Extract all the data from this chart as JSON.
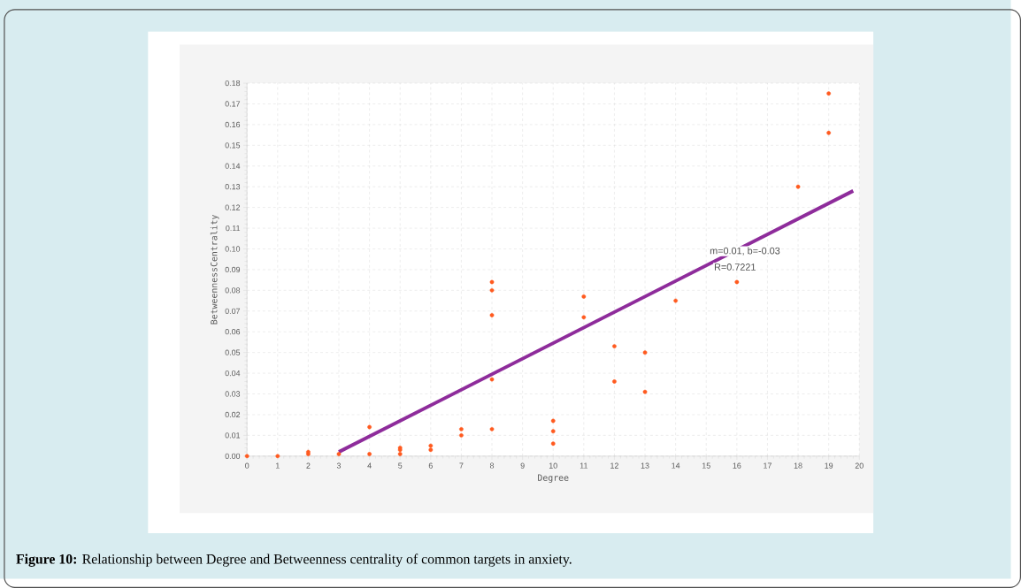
{
  "chart_data": {
    "type": "scatter",
    "xlabel": "Degree",
    "ylabel": "BetweennessCentrality",
    "xlim": [
      0,
      20
    ],
    "ylim": [
      0,
      0.18
    ],
    "xticks": [
      0,
      1,
      2,
      3,
      4,
      5,
      6,
      7,
      8,
      9,
      10,
      11,
      12,
      13,
      14,
      15,
      16,
      17,
      18,
      19,
      20
    ],
    "yticks": [
      {
        "value": 0,
        "label": "0.00"
      },
      {
        "value": 0.01,
        "label": "0.01"
      },
      {
        "value": 0.02,
        "label": "0.02"
      },
      {
        "value": 0.03,
        "label": "0.03"
      },
      {
        "value": 0.04,
        "label": "0.04"
      },
      {
        "value": 0.05,
        "label": "0.05"
      },
      {
        "value": 0.06,
        "label": "0.06"
      },
      {
        "value": 0.07,
        "label": "0.07"
      },
      {
        "value": 0.08,
        "label": "0.08"
      },
      {
        "value": 0.09,
        "label": "0.09"
      },
      {
        "value": 0.1,
        "label": "0.10"
      },
      {
        "value": 0.11,
        "label": "0.11"
      },
      {
        "value": 0.12,
        "label": "0.12"
      },
      {
        "value": 0.13,
        "label": "0.13"
      },
      {
        "value": 0.14,
        "label": "0.14"
      },
      {
        "value": 0.15,
        "label": "0.15"
      },
      {
        "value": 0.16,
        "label": "0.16"
      },
      {
        "value": 0.17,
        "label": "0.17"
      },
      {
        "value": 0.18,
        "label": "0.18"
      }
    ],
    "grid": true,
    "series": [
      {
        "marker": "circle",
        "color": "#ff5a1f",
        "x": [
          0,
          1,
          2,
          2,
          3,
          4,
          4,
          5,
          5,
          5,
          6,
          6,
          7,
          7,
          8,
          8,
          8,
          8,
          8,
          10,
          10,
          10,
          11,
          11,
          12,
          12,
          13,
          13,
          14,
          16,
          18,
          19,
          19
        ],
        "values": [
          0,
          0,
          0.001,
          0.002,
          0.001,
          0.014,
          0.001,
          0.004,
          0.003,
          0.001,
          0.005,
          0.003,
          0.013,
          0.01,
          0.084,
          0.08,
          0.068,
          0.037,
          0.013,
          0.017,
          0.012,
          0.006,
          0.077,
          0.067,
          0.053,
          0.036,
          0.05,
          0.031,
          0.075,
          0.084,
          0.13,
          0.175,
          0.156
        ]
      },
      {
        "type": "line",
        "marker": "none",
        "color": "#8e2c9b",
        "x": [
          3,
          19.8
        ],
        "values": [
          0.002,
          0.128
        ]
      }
    ],
    "annotations": [
      "m=0.01, b=-0.03",
      "R=0.7221",
      "**Figure 10:** Relationship between Degree and Betweenness centrality of common targets in anxiety."
    ]
  }
}
